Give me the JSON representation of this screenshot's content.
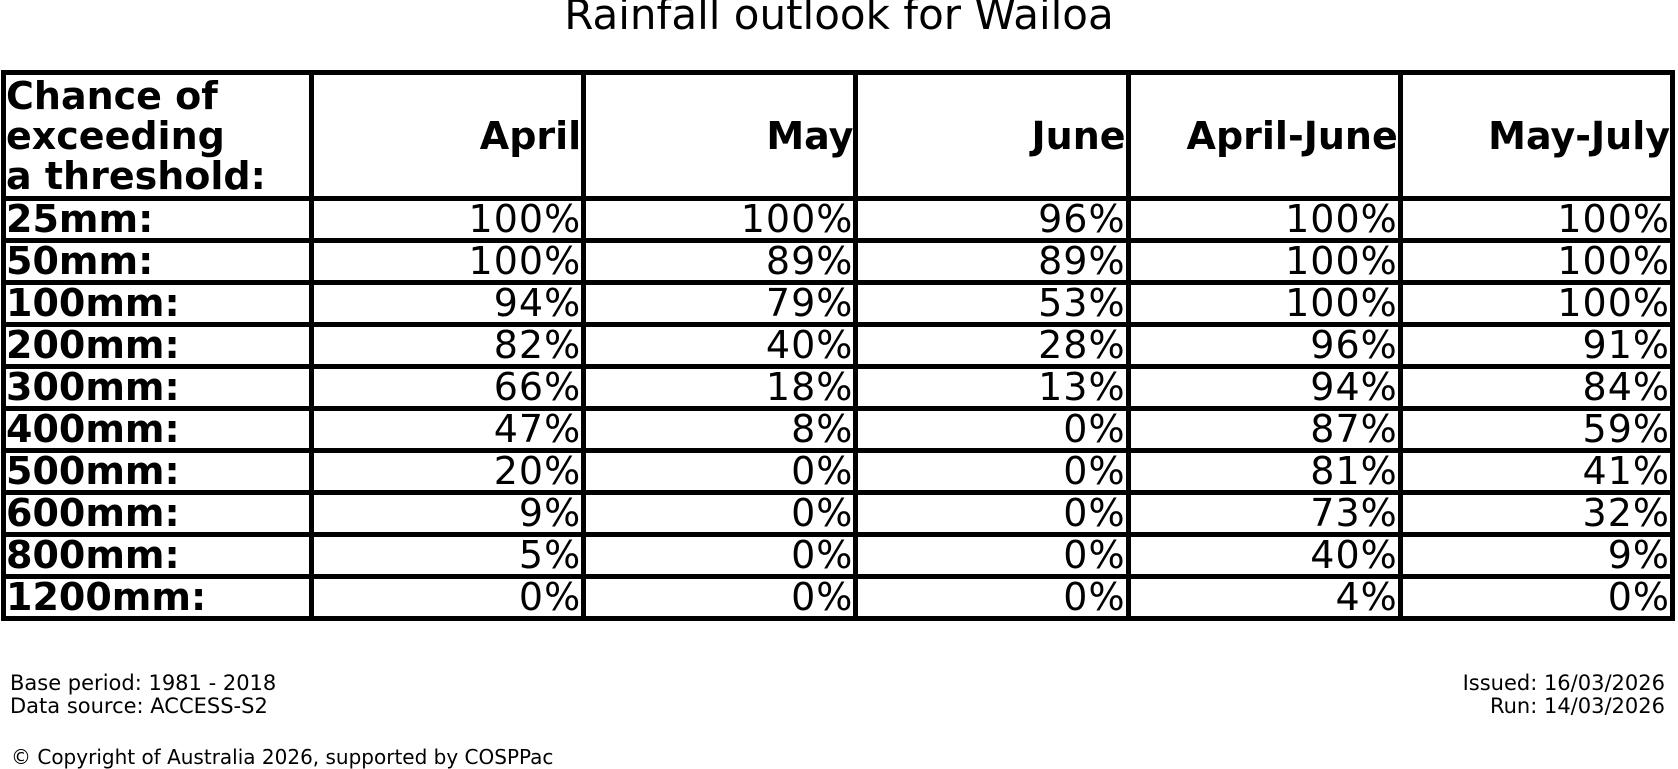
{
  "title": "Rainfall outlook for Wailoa",
  "table": {
    "corner_header": "Chance of\nexceeding\na threshold:",
    "columns": [
      "April",
      "May",
      "June",
      "April-June",
      "May-July"
    ],
    "rows": [
      {
        "label": "25mm:",
        "values": [
          "100%",
          "100%",
          "96%",
          "100%",
          "100%"
        ]
      },
      {
        "label": "50mm:",
        "values": [
          "100%",
          "89%",
          "89%",
          "100%",
          "100%"
        ]
      },
      {
        "label": "100mm:",
        "values": [
          "94%",
          "79%",
          "53%",
          "100%",
          "100%"
        ]
      },
      {
        "label": "200mm:",
        "values": [
          "82%",
          "40%",
          "28%",
          "96%",
          "91%"
        ]
      },
      {
        "label": "300mm:",
        "values": [
          "66%",
          "18%",
          "13%",
          "94%",
          "84%"
        ]
      },
      {
        "label": "400mm:",
        "values": [
          "47%",
          "8%",
          "0%",
          "87%",
          "59%"
        ]
      },
      {
        "label": "500mm:",
        "values": [
          "20%",
          "0%",
          "0%",
          "81%",
          "41%"
        ]
      },
      {
        "label": "600mm:",
        "values": [
          "9%",
          "0%",
          "0%",
          "73%",
          "32%"
        ]
      },
      {
        "label": "800mm:",
        "values": [
          "5%",
          "0%",
          "0%",
          "40%",
          "9%"
        ]
      },
      {
        "label": "1200mm:",
        "values": [
          "0%",
          "0%",
          "0%",
          "4%",
          "0%"
        ]
      }
    ]
  },
  "footer": {
    "base_period": "Base period: 1981 - 2018",
    "data_source": "Data source: ACCESS-S2",
    "issued": "Issued: 16/03/2026",
    "run": "Run: 14/03/2026",
    "copyright": "© Copyright of Australia 2026, supported by COSPPac"
  },
  "colors": {
    "background": "#ffffff",
    "text": "#000000",
    "border": "#000000"
  },
  "chart_data": {
    "type": "table",
    "title": "Rainfall outlook for Wailoa",
    "row_axis_label": "Chance of exceeding a threshold:",
    "columns": [
      "April",
      "May",
      "June",
      "April-June",
      "May-July"
    ],
    "thresholds_mm": [
      25,
      50,
      100,
      200,
      300,
      400,
      500,
      600,
      800,
      1200
    ],
    "values_percent": [
      [
        100,
        100,
        96,
        100,
        100
      ],
      [
        100,
        89,
        89,
        100,
        100
      ],
      [
        94,
        79,
        53,
        100,
        100
      ],
      [
        82,
        40,
        28,
        96,
        91
      ],
      [
        66,
        18,
        13,
        94,
        84
      ],
      [
        47,
        8,
        0,
        87,
        59
      ],
      [
        20,
        0,
        0,
        81,
        41
      ],
      [
        9,
        0,
        0,
        73,
        32
      ],
      [
        5,
        0,
        0,
        40,
        9
      ],
      [
        0,
        0,
        0,
        4,
        0
      ]
    ]
  }
}
